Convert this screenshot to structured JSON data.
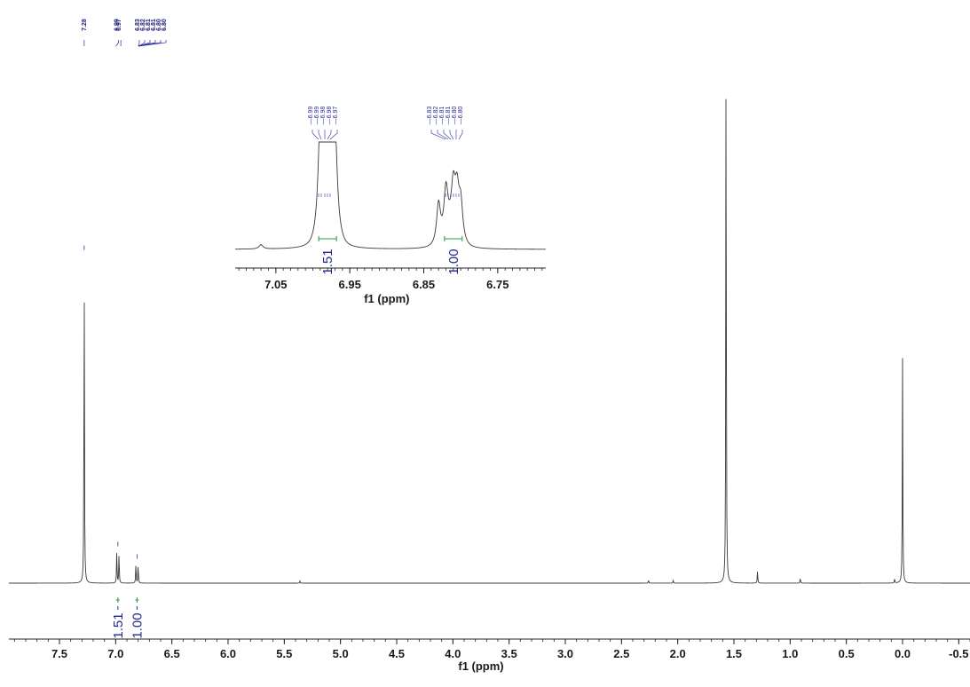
{
  "chart_data": [
    {
      "type": "line",
      "name": "main-spectrum",
      "xlabel": "f1 (ppm)",
      "ylabel": "",
      "xlim": [
        7.95,
        -0.6
      ],
      "x_reversed": true,
      "grid": false,
      "x_ticks": [
        7.5,
        7.0,
        6.5,
        6.0,
        5.5,
        5.0,
        4.5,
        4.0,
        3.5,
        3.0,
        2.5,
        2.0,
        1.5,
        1.0,
        0.5,
        0.0,
        -0.5
      ],
      "x_tick_labels": [
        "7.5",
        "7.0",
        "6.5",
        "6.0",
        "5.5",
        "5.0",
        "4.5",
        "4.0",
        "3.5",
        "3.0",
        "2.5",
        "2.0",
        "1.5",
        "1.0",
        "0.5",
        "0.0",
        "-0.5"
      ],
      "peaks": [
        {
          "ppm": 7.28,
          "height": 0.58
        },
        {
          "ppm": 6.99,
          "height": 0.057
        },
        {
          "ppm": 6.97,
          "height": 0.055
        },
        {
          "ppm": 6.82,
          "height": 0.035
        },
        {
          "ppm": 6.8,
          "height": 0.035
        },
        {
          "ppm": 5.36,
          "height": 0.004
        },
        {
          "ppm": 2.26,
          "height": 0.006
        },
        {
          "ppm": 2.04,
          "height": 0.005
        },
        {
          "ppm": 1.57,
          "height": 1.0
        },
        {
          "ppm": 1.29,
          "height": 0.022
        },
        {
          "ppm": 0.91,
          "height": 0.01
        },
        {
          "ppm": 0.07,
          "height": 0.008
        },
        {
          "ppm": 0.0,
          "height": 0.395
        }
      ],
      "peak_labels": [
        "7.28",
        "6.99",
        "6.97",
        "6.83",
        "6.82",
        "6.81",
        "6.81",
        "6.80",
        "6.80"
      ],
      "integrals": [
        {
          "value": "1.51",
          "ppm": 6.98
        },
        {
          "value": "1.00",
          "ppm": 6.81
        }
      ]
    },
    {
      "type": "line",
      "name": "inset-expansion",
      "xlabel": "f1 (ppm)",
      "ylabel": "",
      "xlim": [
        7.105,
        6.685
      ],
      "x_reversed": true,
      "grid": false,
      "x_ticks": [
        7.05,
        6.95,
        6.85,
        6.75
      ],
      "x_tick_labels": [
        "7.05",
        "6.95",
        "6.85",
        "6.75"
      ],
      "peaks": [
        {
          "ppm": 7.07,
          "height": 0.04
        },
        {
          "ppm": 6.99,
          "height": 0.83
        },
        {
          "ppm": 6.983,
          "height": 0.86
        },
        {
          "ppm": 6.975,
          "height": 0.88
        },
        {
          "ppm": 6.97,
          "height": 0.7
        },
        {
          "ppm": 6.83,
          "height": 0.38
        },
        {
          "ppm": 6.82,
          "height": 0.42
        },
        {
          "ppm": 6.81,
          "height": 0.37
        },
        {
          "ppm": 6.805,
          "height": 0.36
        },
        {
          "ppm": 6.8,
          "height": 0.33
        }
      ],
      "peak_labels": [
        "6.99",
        "6.99",
        "6.98",
        "6.98",
        "6.97",
        "6.83",
        "6.82",
        "6.81",
        "6.81",
        "6.80",
        "6.80"
      ],
      "integrals": [
        {
          "value": "1.51",
          "ppm": 6.98
        },
        {
          "value": "1.00",
          "ppm": 6.81
        }
      ]
    }
  ]
}
